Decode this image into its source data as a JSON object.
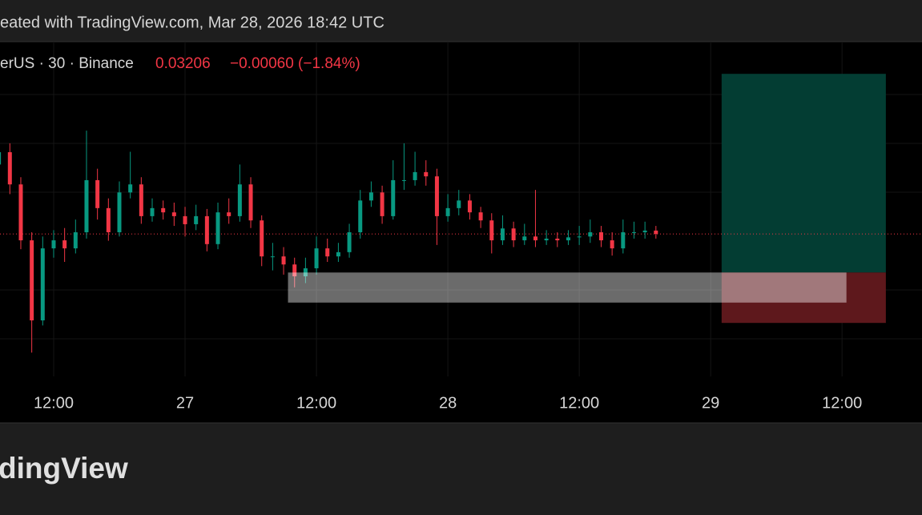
{
  "chart_data": {
    "type": "candlestick",
    "header": "eated with TradingView.com, Mar 28, 2026 18:42 UTC",
    "symbol_label": "erUS · 30 · Binance",
    "last_price": 0.03206,
    "change_label": "−0.00060 (−1.84%)",
    "brand": "dingView",
    "up_color": "#089981",
    "down_color": "#f23645",
    "xlim": [
      7.1,
      91.3
    ],
    "xticks": [
      {
        "value": 12,
        "label": "12:00"
      },
      {
        "value": 24,
        "label": "27"
      },
      {
        "value": 36,
        "label": "12:00"
      },
      {
        "value": 48,
        "label": "28"
      },
      {
        "value": 60,
        "label": "12:00"
      },
      {
        "value": 72,
        "label": "29"
      },
      {
        "value": 84,
        "label": "12:00"
      }
    ],
    "ylim": [
      0.0276,
      0.0366
    ],
    "candles": {
      "x": [
        7,
        8,
        9,
        10,
        11,
        12,
        13,
        14,
        15,
        16,
        17,
        18,
        19,
        20,
        21,
        22,
        23,
        24,
        25,
        26,
        27,
        28,
        29,
        30,
        31,
        32,
        33,
        34,
        35,
        36,
        37,
        38,
        39,
        40,
        41,
        42,
        43,
        44,
        45,
        46,
        47,
        48,
        49,
        50,
        51,
        52,
        53,
        54,
        55,
        56,
        57,
        58,
        59,
        60,
        61,
        62,
        63,
        64,
        65,
        66,
        67
      ],
      "open": [
        0.0337,
        0.03399,
        0.03323,
        0.03191,
        0.03002,
        0.03172,
        0.03191,
        0.03172,
        0.0321,
        0.03333,
        0.03267,
        0.0321,
        0.03304,
        0.03323,
        0.03248,
        0.03267,
        0.03257,
        0.03248,
        0.03229,
        0.03248,
        0.03182,
        0.03257,
        0.03248,
        0.03323,
        0.03238,
        0.03153,
        0.03153,
        0.03134,
        0.03106,
        0.03125,
        0.03172,
        0.03153,
        0.03163,
        0.0321,
        0.03285,
        0.03304,
        0.03248,
        0.03333,
        0.03333,
        0.03352,
        0.03342,
        0.03248,
        0.03267,
        0.03285,
        0.03257,
        0.03238,
        0.03191,
        0.03219,
        0.03191,
        0.032,
        0.03191,
        0.03195,
        0.03191,
        0.03198,
        0.032,
        0.0321,
        0.03191,
        0.03172,
        0.0321,
        0.0321,
        0.03214
      ],
      "high": [
        0.0343,
        0.0342,
        0.0334,
        0.0321,
        0.032,
        0.03215,
        0.0322,
        0.0324,
        0.0345,
        0.0336,
        0.0329,
        0.0333,
        0.034,
        0.0334,
        0.0329,
        0.03285,
        0.0328,
        0.0327,
        0.03275,
        0.03265,
        0.0328,
        0.0329,
        0.0337,
        0.0334,
        0.0325,
        0.03185,
        0.03175,
        0.0315,
        0.0315,
        0.032,
        0.03195,
        0.03185,
        0.0323,
        0.0331,
        0.0333,
        0.0332,
        0.0338,
        0.0342,
        0.034,
        0.0338,
        0.0336,
        0.033,
        0.0331,
        0.033,
        0.0327,
        0.03255,
        0.0325,
        0.03235,
        0.0323,
        0.0331,
        0.03215,
        0.0321,
        0.03215,
        0.03225,
        0.0324,
        0.03225,
        0.0321,
        0.0324,
        0.03235,
        0.03235,
        0.03225
      ],
      "low": [
        0.0335,
        0.033,
        0.0317,
        0.02926,
        0.0299,
        0.0315,
        0.0314,
        0.0316,
        0.03195,
        0.0324,
        0.0319,
        0.032,
        0.0329,
        0.0323,
        0.03235,
        0.0324,
        0.03225,
        0.032,
        0.03215,
        0.03165,
        0.0317,
        0.0323,
        0.03235,
        0.0322,
        0.0313,
        0.0312,
        0.0311,
        0.0308,
        0.0309,
        0.0311,
        0.0314,
        0.0314,
        0.0315,
        0.03195,
        0.0327,
        0.0323,
        0.0324,
        0.0331,
        0.0332,
        0.0332,
        0.0318,
        0.03235,
        0.0325,
        0.0324,
        0.0322,
        0.0316,
        0.0318,
        0.03175,
        0.0318,
        0.03175,
        0.0318,
        0.03175,
        0.0318,
        0.0318,
        0.03185,
        0.03175,
        0.03155,
        0.0316,
        0.03195,
        0.03195,
        0.03195
      ],
      "close": [
        0.03399,
        0.03323,
        0.03191,
        0.03002,
        0.03172,
        0.03191,
        0.03172,
        0.0321,
        0.03333,
        0.03267,
        0.0321,
        0.03304,
        0.03323,
        0.03248,
        0.03267,
        0.03257,
        0.03248,
        0.03229,
        0.03248,
        0.03182,
        0.03257,
        0.03248,
        0.03323,
        0.03238,
        0.03153,
        0.03153,
        0.03134,
        0.03106,
        0.03125,
        0.03172,
        0.03153,
        0.03163,
        0.0321,
        0.03285,
        0.03304,
        0.03248,
        0.03333,
        0.03333,
        0.03352,
        0.03342,
        0.03248,
        0.03267,
        0.03285,
        0.03257,
        0.03238,
        0.03191,
        0.03219,
        0.03191,
        0.032,
        0.03191,
        0.03195,
        0.03191,
        0.03198,
        0.032,
        0.0321,
        0.03191,
        0.03172,
        0.0321,
        0.0321,
        0.03214,
        0.03206
      ]
    },
    "position": {
      "start": 73,
      "end": 88,
      "target": 0.03584,
      "entry": 0.03115,
      "stop": 0.02996
    },
    "range_box": {
      "start": 33.4,
      "end": 84.4,
      "top": 0.03115,
      "bottom": 0.03044
    }
  }
}
